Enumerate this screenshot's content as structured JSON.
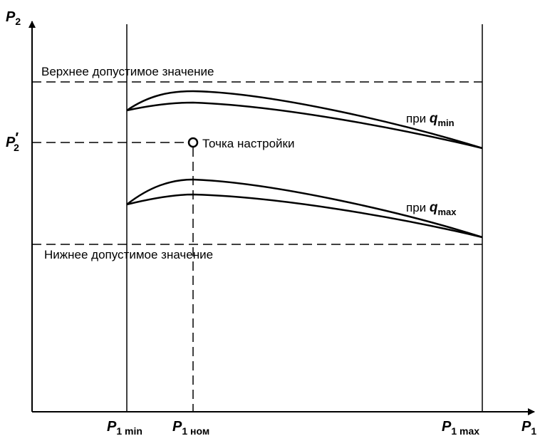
{
  "chart_data": {
    "type": "line",
    "y_axis_label": "P",
    "y_axis_label_sub": "2",
    "x_axis_label": "P",
    "x_axis_label_sub": "1",
    "upper_limit_label": "Верхнее допустимое значение",
    "lower_limit_label": "Нижнее допустимое значение",
    "setpoint_label": "Точка настройки",
    "setpoint_y_label": "P",
    "setpoint_y_sub": "2",
    "x_ticks": [
      {
        "main": "P",
        "sub": "1 min"
      },
      {
        "main": "P",
        "sub": "1 ном"
      },
      {
        "main": "P",
        "sub": "1 max"
      }
    ],
    "series": [
      {
        "prefix": "при ",
        "var": "q",
        "sub": "min"
      },
      {
        "prefix": "при ",
        "var": "q",
        "sub": "max"
      }
    ]
  }
}
